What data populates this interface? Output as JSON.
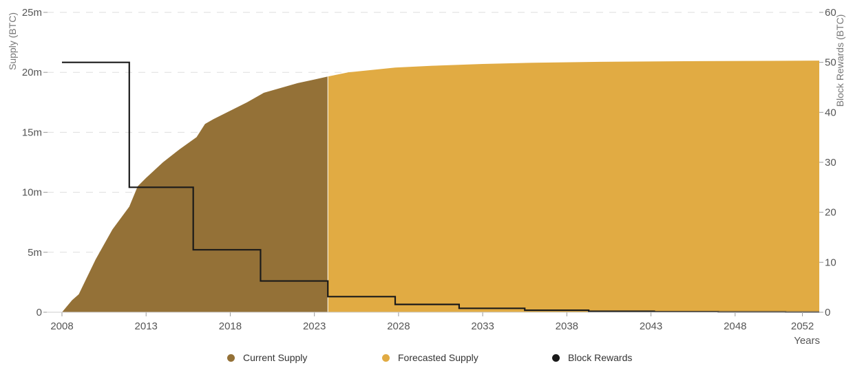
{
  "chart_data": {
    "type": "area",
    "x_axis": {
      "range": [
        2008,
        2053
      ],
      "ticks": [
        "2008",
        "2013",
        "2018",
        "2023",
        "2028",
        "2033",
        "2038",
        "2043",
        "2048",
        "2052"
      ],
      "label": "Years"
    },
    "y_axis_left": {
      "label": "Supply (BTC)",
      "range": [
        0,
        25000000
      ],
      "ticks": [
        "0",
        "5m",
        "10m",
        "15m",
        "20m",
        "25m"
      ]
    },
    "y_axis_right": {
      "label": "Block Rewards (BTC)",
      "range": [
        0,
        60
      ],
      "ticks": [
        "0",
        "10",
        "20",
        "30",
        "40",
        "50",
        "60"
      ]
    },
    "grid": "horizontal dashed",
    "legend_position": "bottom",
    "series": [
      {
        "name": "Current Supply",
        "kind": "area",
        "axis": "left",
        "color": "#947137",
        "points": [
          [
            2008.0,
            0
          ],
          [
            2008.3,
            500000
          ],
          [
            2008.6,
            1000000
          ],
          [
            2009.0,
            1500000
          ],
          [
            2010.0,
            4400000
          ],
          [
            2011.0,
            6900000
          ],
          [
            2012.0,
            8800000
          ],
          [
            2012.5,
            10500000
          ],
          [
            2013.0,
            11200000
          ],
          [
            2014.0,
            12500000
          ],
          [
            2015.0,
            13600000
          ],
          [
            2016.0,
            14600000
          ],
          [
            2016.5,
            15700000
          ],
          [
            2017.0,
            16100000
          ],
          [
            2018.0,
            16800000
          ],
          [
            2019.0,
            17500000
          ],
          [
            2020.0,
            18300000
          ],
          [
            2021.0,
            18700000
          ],
          [
            2022.0,
            19100000
          ],
          [
            2023.0,
            19400000
          ],
          [
            2023.8,
            19650000
          ]
        ]
      },
      {
        "name": "Forecasted Supply",
        "kind": "area",
        "axis": "left",
        "color": "#e1ab43",
        "points": [
          [
            2023.8,
            19650000
          ],
          [
            2025.0,
            20000000
          ],
          [
            2027.8,
            20400000
          ],
          [
            2030.0,
            20550000
          ],
          [
            2033.0,
            20700000
          ],
          [
            2036.0,
            20800000
          ],
          [
            2040.0,
            20880000
          ],
          [
            2045.0,
            20930000
          ],
          [
            2050.0,
            20960000
          ],
          [
            2053.0,
            20980000
          ]
        ]
      },
      {
        "name": "Block Rewards",
        "kind": "step-line",
        "axis": "right",
        "color": "#1a1a1a",
        "points": [
          [
            2008.0,
            50
          ],
          [
            2012.0,
            50
          ],
          [
            2012.0,
            25
          ],
          [
            2015.8,
            25
          ],
          [
            2015.8,
            12.5
          ],
          [
            2019.8,
            12.5
          ],
          [
            2019.8,
            6.25
          ],
          [
            2023.8,
            6.25
          ],
          [
            2023.8,
            3.125
          ],
          [
            2027.8,
            3.125
          ],
          [
            2027.8,
            1.5625
          ],
          [
            2031.6,
            1.5625
          ],
          [
            2031.6,
            0.78125
          ],
          [
            2035.5,
            0.78125
          ],
          [
            2035.5,
            0.390625
          ],
          [
            2039.3,
            0.390625
          ],
          [
            2039.3,
            0.1953125
          ],
          [
            2043.2,
            0.1953125
          ],
          [
            2043.2,
            0.09765625
          ],
          [
            2047.0,
            0.09765625
          ],
          [
            2047.0,
            0.048828125
          ],
          [
            2051.0,
            0.048828125
          ],
          [
            2051.0,
            0.0244140625
          ],
          [
            2053.0,
            0.0244140625
          ]
        ]
      }
    ]
  },
  "legend": {
    "items": [
      {
        "label": "Current Supply",
        "color": "#947137"
      },
      {
        "label": "Forecasted Supply",
        "color": "#e1ab43"
      },
      {
        "label": "Block Rewards",
        "color": "#1a1a1a"
      }
    ]
  }
}
